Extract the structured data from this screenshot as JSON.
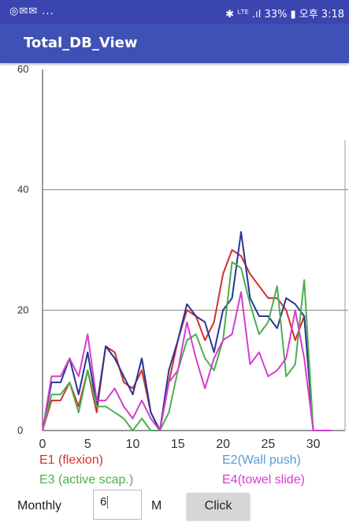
{
  "status_bar": {
    "left_text": "◎✉✉ ...",
    "right_text": "✱ ᴸᵀᴱ .ıl 33% ▮ 오후 3:18"
  },
  "app": {
    "title": "Total_DB_View"
  },
  "chart_data": {
    "type": "line",
    "x": [
      0,
      1,
      2,
      3,
      4,
      5,
      6,
      7,
      8,
      9,
      10,
      11,
      12,
      13,
      14,
      15,
      16,
      17,
      18,
      19,
      20,
      21,
      22,
      23,
      24,
      25,
      26,
      27,
      28,
      29,
      30,
      31,
      32
    ],
    "xlim": [
      0,
      33
    ],
    "ylim": [
      0,
      60
    ],
    "xticks": [
      0,
      5,
      10,
      15,
      20,
      25,
      30
    ],
    "yticks": [
      0,
      20,
      40,
      60
    ],
    "grid_y": [
      20,
      40
    ],
    "series": [
      {
        "name": "E1 (flexion)",
        "color": "#d32f2f",
        "values": [
          0,
          5,
          5,
          8,
          4,
          10,
          3,
          14,
          13,
          8,
          7,
          10,
          3,
          0,
          8,
          15,
          20,
          19,
          15,
          18,
          26,
          30,
          29,
          26,
          24,
          22,
          22,
          20,
          15,
          19,
          0,
          0,
          0
        ]
      },
      {
        "name": "E2(Wall push)",
        "color": "#283593",
        "values": [
          0,
          8,
          8,
          12,
          6,
          13,
          4,
          14,
          12,
          9,
          6,
          12,
          3,
          0,
          10,
          15,
          21,
          19,
          18,
          13,
          20,
          22,
          33,
          22,
          19,
          19,
          17,
          22,
          21,
          19,
          0,
          0,
          0
        ]
      },
      {
        "name": "E3 (active scap.)",
        "color": "#4caf50",
        "values": [
          0,
          6,
          6,
          8,
          3,
          10,
          4,
          4,
          3,
          2,
          0,
          2,
          0,
          0,
          3,
          10,
          15,
          16,
          12,
          10,
          15,
          28,
          27,
          21,
          16,
          18,
          24,
          9,
          11,
          25,
          0,
          0,
          0
        ]
      },
      {
        "name": "E4(towel slide)",
        "color": "#d63ccf",
        "values": [
          0,
          9,
          9,
          12,
          9,
          16,
          5,
          5,
          7,
          4,
          2,
          5,
          2,
          0,
          8,
          10,
          18,
          12,
          7,
          12,
          15,
          16,
          23,
          11,
          13,
          9,
          10,
          12,
          20,
          12,
          0,
          0,
          0
        ]
      }
    ]
  },
  "legend": [
    {
      "label": "E1 (flexion)",
      "color": "#d32f2f"
    },
    {
      "label": "E2(Wall push)",
      "color": "#5b9bd5"
    },
    {
      "label": "E3 (active scap.)",
      "color": "#4caf50"
    },
    {
      "label": "E4(towel slide)",
      "color": "#d63ccf"
    }
  ],
  "controls": {
    "period_label": "Monthly",
    "input_value": "6",
    "unit_label": "M",
    "button_label": "Click"
  }
}
